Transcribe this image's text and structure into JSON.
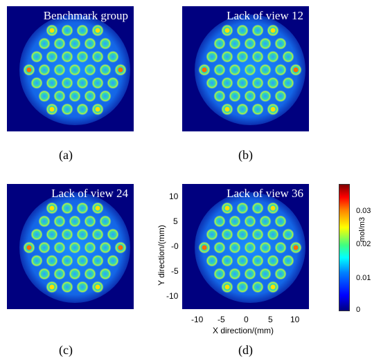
{
  "panels": [
    {
      "title": "Benchmark group",
      "caption": "(a)"
    },
    {
      "title": "Lack of view 12",
      "caption": "(b)"
    },
    {
      "title": "Lack of view 24",
      "caption": "(c)"
    },
    {
      "title": "Lack of view 36",
      "caption": "(d)"
    }
  ],
  "axes": {
    "x_title": "X direction/(mm)",
    "y_title": "Y direction/(mm)",
    "x_ticks": [
      "-10",
      "-5",
      "0",
      "5",
      "10"
    ],
    "y_ticks": [
      "10",
      "5",
      "-0",
      "-5",
      "-10"
    ]
  },
  "colorbar": {
    "unit": "mol/m3",
    "ticks": [
      "0.03",
      "0.02",
      "0.01",
      "0"
    ],
    "colors": [
      "#00007f",
      "#0000ff",
      "#00ffff",
      "#ffff00",
      "#ff0000",
      "#7f0000"
    ]
  }
}
